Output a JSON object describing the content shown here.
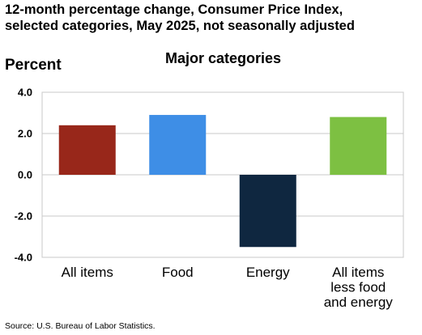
{
  "title_lines": [
    "12-month percentage change, Consumer Price Index,",
    "selected categories, May 2025, not seasonally adjusted"
  ],
  "source": "Source: U.S. Bureau of Labor Statistics.",
  "chart_data": {
    "type": "bar",
    "title": "12-month percentage change, Consumer Price Index, selected categories, May 2025, not seasonally adjusted",
    "subtitle": "Major categories",
    "ylabel": "Percent",
    "xlabel": "",
    "ylim": [
      -4.0,
      4.0
    ],
    "yticks": [
      "4.0",
      "2.0",
      "0.0",
      "-2.0",
      "-4.0"
    ],
    "ytick_values": [
      4.0,
      2.0,
      0.0,
      -2.0,
      -4.0
    ],
    "categories": [
      [
        "All items"
      ],
      [
        "Food"
      ],
      [
        "Energy"
      ],
      [
        "All items",
        "less food",
        "and energy"
      ]
    ],
    "values": [
      2.4,
      2.9,
      -3.5,
      2.8
    ],
    "colors": [
      "#98271a",
      "#3e8ee6",
      "#0f2740",
      "#7dc042"
    ],
    "grid": true,
    "legend": "none"
  }
}
